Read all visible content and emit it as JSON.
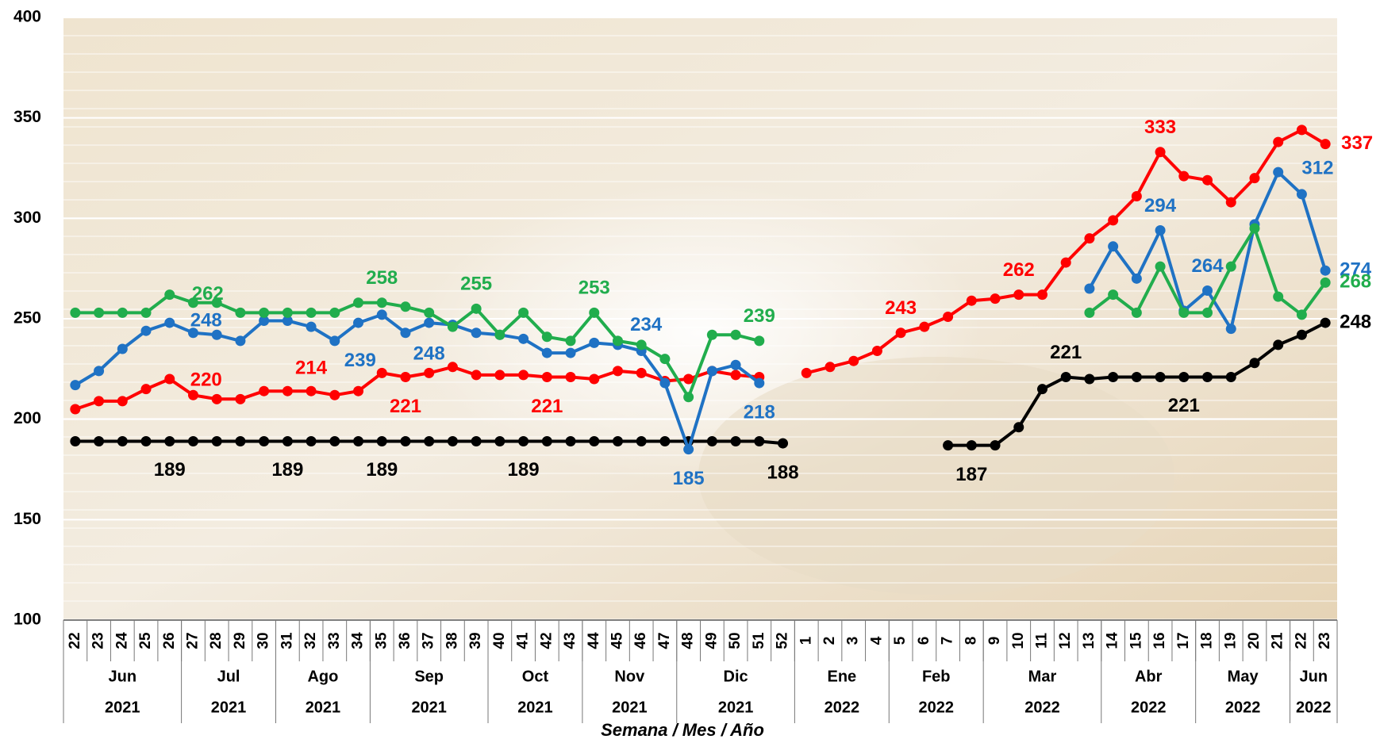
{
  "chart_data": {
    "type": "line",
    "x_title": "Semana / Mes / Año",
    "categories": [
      {
        "week": "22",
        "month": "Jun",
        "year": "2021"
      },
      {
        "week": "23",
        "month": "Jun",
        "year": "2021"
      },
      {
        "week": "24",
        "month": "Jun",
        "year": "2021"
      },
      {
        "week": "25",
        "month": "Jun",
        "year": "2021"
      },
      {
        "week": "26",
        "month": "Jun",
        "year": "2021"
      },
      {
        "week": "27",
        "month": "Jul",
        "year": "2021"
      },
      {
        "week": "28",
        "month": "Jul",
        "year": "2021"
      },
      {
        "week": "29",
        "month": "Jul",
        "year": "2021"
      },
      {
        "week": "30",
        "month": "Jul",
        "year": "2021"
      },
      {
        "week": "31",
        "month": "Ago",
        "year": "2021"
      },
      {
        "week": "32",
        "month": "Ago",
        "year": "2021"
      },
      {
        "week": "33",
        "month": "Ago",
        "year": "2021"
      },
      {
        "week": "34",
        "month": "Ago",
        "year": "2021"
      },
      {
        "week": "35",
        "month": "Sep",
        "year": "2021"
      },
      {
        "week": "36",
        "month": "Sep",
        "year": "2021"
      },
      {
        "week": "37",
        "month": "Sep",
        "year": "2021"
      },
      {
        "week": "38",
        "month": "Sep",
        "year": "2021"
      },
      {
        "week": "39",
        "month": "Sep",
        "year": "2021"
      },
      {
        "week": "40",
        "month": "Oct",
        "year": "2021"
      },
      {
        "week": "41",
        "month": "Oct",
        "year": "2021"
      },
      {
        "week": "42",
        "month": "Oct",
        "year": "2021"
      },
      {
        "week": "43",
        "month": "Oct",
        "year": "2021"
      },
      {
        "week": "44",
        "month": "Nov",
        "year": "2021"
      },
      {
        "week": "45",
        "month": "Nov",
        "year": "2021"
      },
      {
        "week": "46",
        "month": "Nov",
        "year": "2021"
      },
      {
        "week": "47",
        "month": "Nov",
        "year": "2021"
      },
      {
        "week": "48",
        "month": "Dic",
        "year": "2021"
      },
      {
        "week": "49",
        "month": "Dic",
        "year": "2021"
      },
      {
        "week": "50",
        "month": "Dic",
        "year": "2021"
      },
      {
        "week": "51",
        "month": "Dic",
        "year": "2021"
      },
      {
        "week": "52",
        "month": "Dic",
        "year": "2021"
      },
      {
        "week": "1",
        "month": "Ene",
        "year": "2022"
      },
      {
        "week": "2",
        "month": "Ene",
        "year": "2022"
      },
      {
        "week": "3",
        "month": "Ene",
        "year": "2022"
      },
      {
        "week": "4",
        "month": "Ene",
        "year": "2022"
      },
      {
        "week": "5",
        "month": "Feb",
        "year": "2022"
      },
      {
        "week": "6",
        "month": "Feb",
        "year": "2022"
      },
      {
        "week": "7",
        "month": "Feb",
        "year": "2022"
      },
      {
        "week": "8",
        "month": "Feb",
        "year": "2022"
      },
      {
        "week": "9",
        "month": "Mar",
        "year": "2022"
      },
      {
        "week": "10",
        "month": "Mar",
        "year": "2022"
      },
      {
        "week": "11",
        "month": "Mar",
        "year": "2022"
      },
      {
        "week": "12",
        "month": "Mar",
        "year": "2022"
      },
      {
        "week": "13",
        "month": "Mar",
        "year": "2022"
      },
      {
        "week": "14",
        "month": "Abr",
        "year": "2022"
      },
      {
        "week": "15",
        "month": "Abr",
        "year": "2022"
      },
      {
        "week": "16",
        "month": "Abr",
        "year": "2022"
      },
      {
        "week": "17",
        "month": "Abr",
        "year": "2022"
      },
      {
        "week": "18",
        "month": "May",
        "year": "2022"
      },
      {
        "week": "19",
        "month": "May",
        "year": "2022"
      },
      {
        "week": "20",
        "month": "May",
        "year": "2022"
      },
      {
        "week": "21",
        "month": "May",
        "year": "2022"
      },
      {
        "week": "22",
        "month": "Jun",
        "year": "2022"
      },
      {
        "week": "23",
        "month": "Jun",
        "year": "2022"
      }
    ],
    "series": [
      {
        "color": "#000000",
        "values": [
          189,
          189,
          189,
          189,
          189,
          189,
          189,
          189,
          189,
          189,
          189,
          189,
          189,
          189,
          189,
          189,
          189,
          189,
          189,
          189,
          189,
          189,
          189,
          189,
          189,
          189,
          189,
          189,
          189,
          189,
          188,
          null,
          null,
          null,
          null,
          null,
          null,
          187,
          187,
          187,
          196,
          215,
          221,
          220,
          221,
          221,
          221,
          221,
          221,
          221,
          228,
          237,
          242,
          248
        ],
        "value_labels": [
          null,
          null,
          null,
          null,
          "189",
          null,
          null,
          null,
          null,
          "189",
          null,
          null,
          null,
          "189",
          null,
          null,
          null,
          null,
          null,
          "189",
          null,
          null,
          null,
          null,
          null,
          null,
          null,
          null,
          null,
          null,
          "188",
          null,
          null,
          null,
          null,
          null,
          null,
          null,
          "187",
          null,
          null,
          null,
          "221",
          null,
          null,
          null,
          null,
          "221",
          null,
          null,
          null,
          null,
          null,
          "248"
        ]
      },
      {
        "color": "#ff0000",
        "values": [
          205,
          209,
          209,
          215,
          220,
          212,
          210,
          210,
          214,
          214,
          214,
          212,
          214,
          223,
          221,
          223,
          226,
          222,
          222,
          222,
          221,
          221,
          220,
          224,
          223,
          219,
          220,
          224,
          222,
          221,
          null,
          223,
          226,
          229,
          234,
          243,
          246,
          251,
          259,
          260,
          262,
          262,
          278,
          290,
          299,
          311,
          333,
          321,
          319,
          308,
          320,
          338,
          344,
          337
        ],
        "value_labels": [
          null,
          null,
          null,
          null,
          "220",
          null,
          null,
          null,
          null,
          null,
          "214",
          null,
          null,
          null,
          "221",
          null,
          null,
          null,
          null,
          null,
          "221",
          null,
          null,
          null,
          null,
          null,
          null,
          null,
          null,
          null,
          null,
          null,
          null,
          null,
          null,
          "243",
          null,
          null,
          null,
          null,
          "262",
          null,
          null,
          null,
          null,
          null,
          "333",
          null,
          null,
          null,
          null,
          null,
          null,
          "337"
        ]
      },
      {
        "color": "#1f72c4",
        "values": [
          217,
          224,
          235,
          244,
          248,
          243,
          242,
          239,
          249,
          249,
          246,
          239,
          248,
          252,
          243,
          248,
          247,
          243,
          242,
          240,
          233,
          233,
          238,
          237,
          234,
          218,
          185,
          224,
          227,
          218,
          null,
          null,
          null,
          null,
          null,
          null,
          null,
          null,
          null,
          null,
          null,
          null,
          null,
          265,
          286,
          270,
          294,
          254,
          264,
          245,
          297,
          323,
          312,
          274
        ],
        "value_labels": [
          null,
          null,
          null,
          null,
          "248",
          null,
          null,
          null,
          null,
          null,
          null,
          "239",
          null,
          null,
          null,
          "248",
          null,
          null,
          null,
          null,
          null,
          null,
          null,
          null,
          "234",
          null,
          "185",
          null,
          null,
          "218",
          null,
          null,
          null,
          null,
          null,
          null,
          null,
          null,
          null,
          null,
          null,
          null,
          null,
          null,
          null,
          null,
          "294",
          null,
          "264",
          null,
          null,
          null,
          "312",
          "274"
        ]
      },
      {
        "color": "#21ad4d",
        "values": [
          253,
          253,
          253,
          253,
          262,
          258,
          258,
          253,
          253,
          253,
          253,
          253,
          258,
          258,
          256,
          253,
          246,
          255,
          242,
          253,
          241,
          239,
          253,
          239,
          237,
          230,
          211,
          242,
          242,
          239,
          null,
          null,
          null,
          null,
          null,
          null,
          null,
          null,
          null,
          null,
          null,
          null,
          null,
          253,
          262,
          253,
          276,
          253,
          253,
          276,
          295,
          261,
          252,
          268
        ],
        "value_labels": [
          null,
          null,
          null,
          null,
          "262",
          null,
          null,
          null,
          null,
          null,
          null,
          null,
          null,
          "258",
          null,
          null,
          null,
          "255",
          null,
          null,
          null,
          null,
          "253",
          null,
          null,
          null,
          null,
          null,
          null,
          "239",
          null,
          null,
          null,
          null,
          null,
          null,
          null,
          null,
          null,
          null,
          null,
          null,
          null,
          null,
          null,
          null,
          null,
          null,
          null,
          null,
          null,
          null,
          null,
          "268"
        ]
      }
    ],
    "ylim": [
      100,
      400
    ],
    "yticks": [
      100,
      150,
      200,
      250,
      300,
      350,
      400
    ],
    "grid": true
  }
}
